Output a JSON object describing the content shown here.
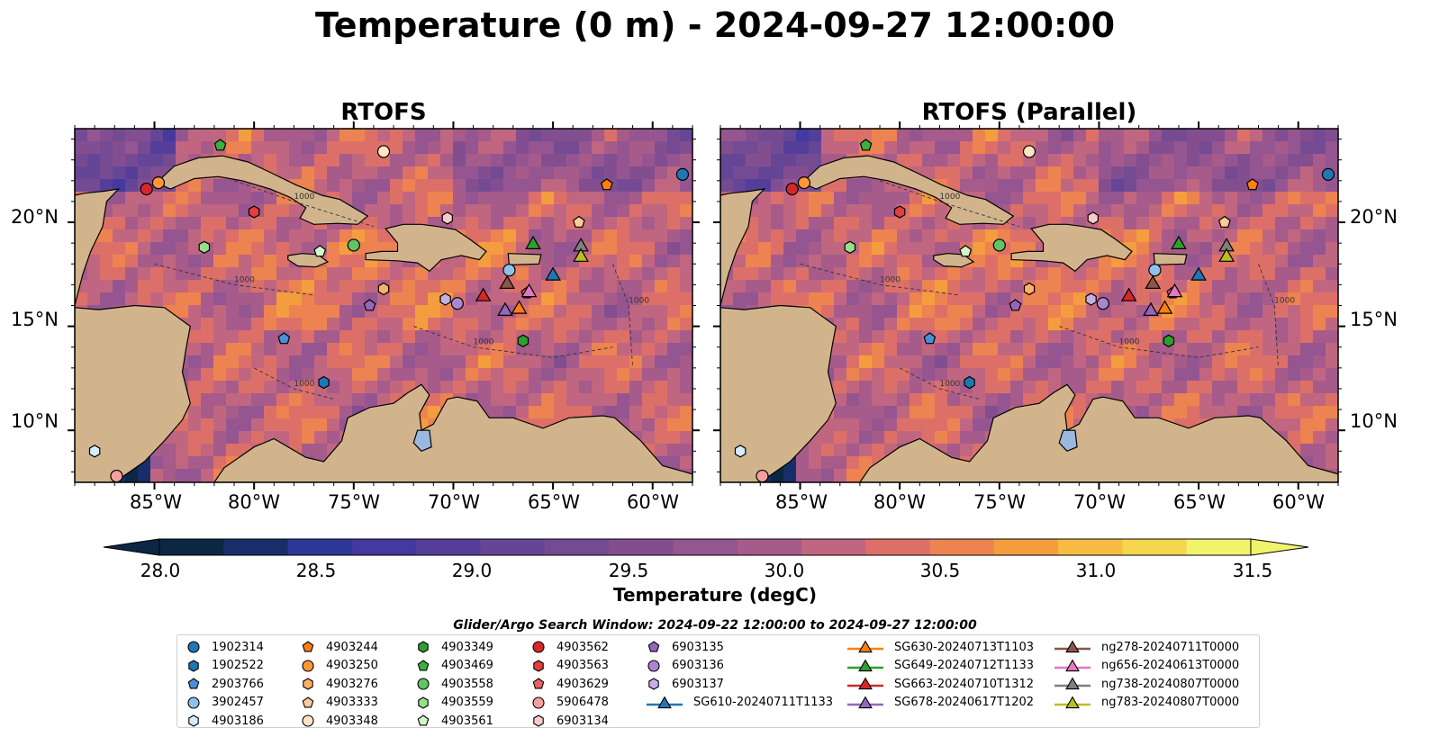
{
  "title": "Temperature (0 m) - 2024-09-27 12:00:00",
  "panels": [
    {
      "title": "RTOFS"
    },
    {
      "title": "RTOFS (Parallel)"
    }
  ],
  "axes": {
    "lon_ticks": [
      "85°W",
      "80°W",
      "75°W",
      "70°W",
      "65°W",
      "60°W"
    ],
    "lat_ticks": [
      "20°N",
      "15°N",
      "10°N"
    ],
    "lon_range": [
      -89,
      -58
    ],
    "lat_range": [
      7.5,
      24.5
    ]
  },
  "colorbar": {
    "label": "Temperature (degC)",
    "ticks": [
      "28.0",
      "28.5",
      "29.0",
      "29.5",
      "30.0",
      "30.5",
      "31.0",
      "31.5"
    ],
    "range": [
      28.0,
      31.5
    ],
    "colormap": "thermal",
    "colors": [
      "#0b2744",
      "#182e6a",
      "#2d3796",
      "#43399e",
      "#553e9a",
      "#654696",
      "#744b93",
      "#834e90",
      "#955591",
      "#a65b8a",
      "#c06680",
      "#dc7068",
      "#ed8350",
      "#f49d3e",
      "#f8bc43",
      "#f7d64f",
      "#f0f36b"
    ]
  },
  "contour_label": "1000",
  "search_window": "Glider/Argo Search Window: 2024-09-22 12:00:00 to 2024-09-27 12:00:00",
  "legend": {
    "argo": [
      {
        "id": "1902314",
        "color": "#1f77b4",
        "shape": "circle"
      },
      {
        "id": "1902522",
        "color": "#1f77b4",
        "shape": "hexagon"
      },
      {
        "id": "2903766",
        "color": "#4a90d9",
        "shape": "pentagon"
      },
      {
        "id": "3902457",
        "color": "#8fc1ea",
        "shape": "circle"
      },
      {
        "id": "4903186",
        "color": "#d5ecfa",
        "shape": "hexagon"
      },
      {
        "id": "4903244",
        "color": "#ff7f0e",
        "shape": "pentagon"
      },
      {
        "id": "4903250",
        "color": "#ff9638",
        "shape": "circle"
      },
      {
        "id": "4903276",
        "color": "#ffae66",
        "shape": "hexagon"
      },
      {
        "id": "4903333",
        "color": "#ffcc99",
        "shape": "pentagon"
      },
      {
        "id": "4903348",
        "color": "#ffe3c6",
        "shape": "circle"
      },
      {
        "id": "4903349",
        "color": "#2ca02c",
        "shape": "hexagon"
      },
      {
        "id": "4903469",
        "color": "#3cb03c",
        "shape": "pentagon"
      },
      {
        "id": "4903558",
        "color": "#63c463",
        "shape": "circle"
      },
      {
        "id": "4903559",
        "color": "#98df8a",
        "shape": "hexagon"
      },
      {
        "id": "4903561",
        "color": "#d4f5c8",
        "shape": "pentagon"
      },
      {
        "id": "4903562",
        "color": "#d62728",
        "shape": "circle"
      },
      {
        "id": "4903563",
        "color": "#e04040",
        "shape": "hexagon"
      },
      {
        "id": "4903629",
        "color": "#ec6060",
        "shape": "pentagon"
      },
      {
        "id": "5906478",
        "color": "#f4a0a0",
        "shape": "circle"
      },
      {
        "id": "6903134",
        "color": "#fbc9c9",
        "shape": "hexagon"
      },
      {
        "id": "6903135",
        "color": "#9467bd",
        "shape": "pentagon"
      },
      {
        "id": "6903136",
        "color": "#aa85d2",
        "shape": "circle"
      },
      {
        "id": "6903137",
        "color": "#c5b0e6",
        "shape": "hexagon"
      }
    ],
    "gliders": [
      {
        "id": "SG610-20240711T1133",
        "color": "#1f77b4"
      },
      {
        "id": "SG630-20240713T1103",
        "color": "#ff7f0e"
      },
      {
        "id": "SG649-20240712T1133",
        "color": "#2ca02c"
      },
      {
        "id": "SG663-20240710T1312",
        "color": "#d62728"
      },
      {
        "id": "SG678-20240617T1202",
        "color": "#9467bd"
      },
      {
        "id": "ng278-20240711T0000",
        "color": "#8c564b"
      },
      {
        "id": "ng656-20240613T0000",
        "color": "#e377c2"
      },
      {
        "id": "ng738-20240807T0000",
        "color": "#7f7f7f"
      },
      {
        "id": "ng783-20240807T0000",
        "color": "#bcbd22"
      }
    ]
  },
  "map_markers": {
    "argo": [
      {
        "id": "1902314",
        "lon": -58.5,
        "lat": 22.3
      },
      {
        "id": "1902522",
        "lon": -76.5,
        "lat": 12.3
      },
      {
        "id": "2903766",
        "lon": -78.5,
        "lat": 14.4
      },
      {
        "id": "3902457",
        "lon": -67.2,
        "lat": 17.7
      },
      {
        "id": "4903186",
        "lon": -88.0,
        "lat": 9.0
      },
      {
        "id": "4903244",
        "lon": -62.3,
        "lat": 21.8
      },
      {
        "id": "4903250",
        "lon": -84.8,
        "lat": 21.9
      },
      {
        "id": "4903276",
        "lon": -73.5,
        "lat": 16.8
      },
      {
        "id": "4903333",
        "lon": -63.7,
        "lat": 20.0
      },
      {
        "id": "4903348",
        "lon": -73.5,
        "lat": 23.4
      },
      {
        "id": "4903349",
        "lon": -66.5,
        "lat": 14.3
      },
      {
        "id": "4903469",
        "lon": -81.7,
        "lat": 23.7
      },
      {
        "id": "4903558",
        "lon": -75.0,
        "lat": 18.9
      },
      {
        "id": "4903559",
        "lon": -82.5,
        "lat": 18.8
      },
      {
        "id": "4903561",
        "lon": -76.7,
        "lat": 18.6
      },
      {
        "id": "4903562",
        "lon": -85.4,
        "lat": 21.6
      },
      {
        "id": "4903563",
        "lon": -80.0,
        "lat": 20.5
      },
      {
        "id": "4903629",
        "lon": -66.3,
        "lat": 16.6
      },
      {
        "id": "5906478",
        "lon": -86.9,
        "lat": 7.8
      },
      {
        "id": "6903134",
        "lon": -70.3,
        "lat": 20.2
      },
      {
        "id": "6903135",
        "lon": -74.2,
        "lat": 16.0
      },
      {
        "id": "6903136",
        "lon": -69.8,
        "lat": 16.1
      },
      {
        "id": "6903137",
        "lon": -70.4,
        "lat": 16.3
      }
    ],
    "gliders": [
      {
        "id": "SG610-20240711T1133",
        "lon": -65.0,
        "lat": 17.5
      },
      {
        "id": "SG630-20240713T1103",
        "lon": -66.7,
        "lat": 15.9
      },
      {
        "id": "SG649-20240712T1133",
        "lon": -66.0,
        "lat": 19.0
      },
      {
        "id": "SG663-20240710T1312",
        "lon": -68.5,
        "lat": 16.5
      },
      {
        "id": "SG678-20240617T1202",
        "lon": -67.4,
        "lat": 15.8
      },
      {
        "id": "ng278-20240711T0000",
        "lon": -67.3,
        "lat": 17.1
      },
      {
        "id": "ng656-20240613T0000",
        "lon": -66.2,
        "lat": 16.7
      },
      {
        "id": "ng738-20240807T0000",
        "lon": -63.6,
        "lat": 18.9
      },
      {
        "id": "ng783-20240807T0000",
        "lon": -63.6,
        "lat": 18.4
      }
    ]
  }
}
